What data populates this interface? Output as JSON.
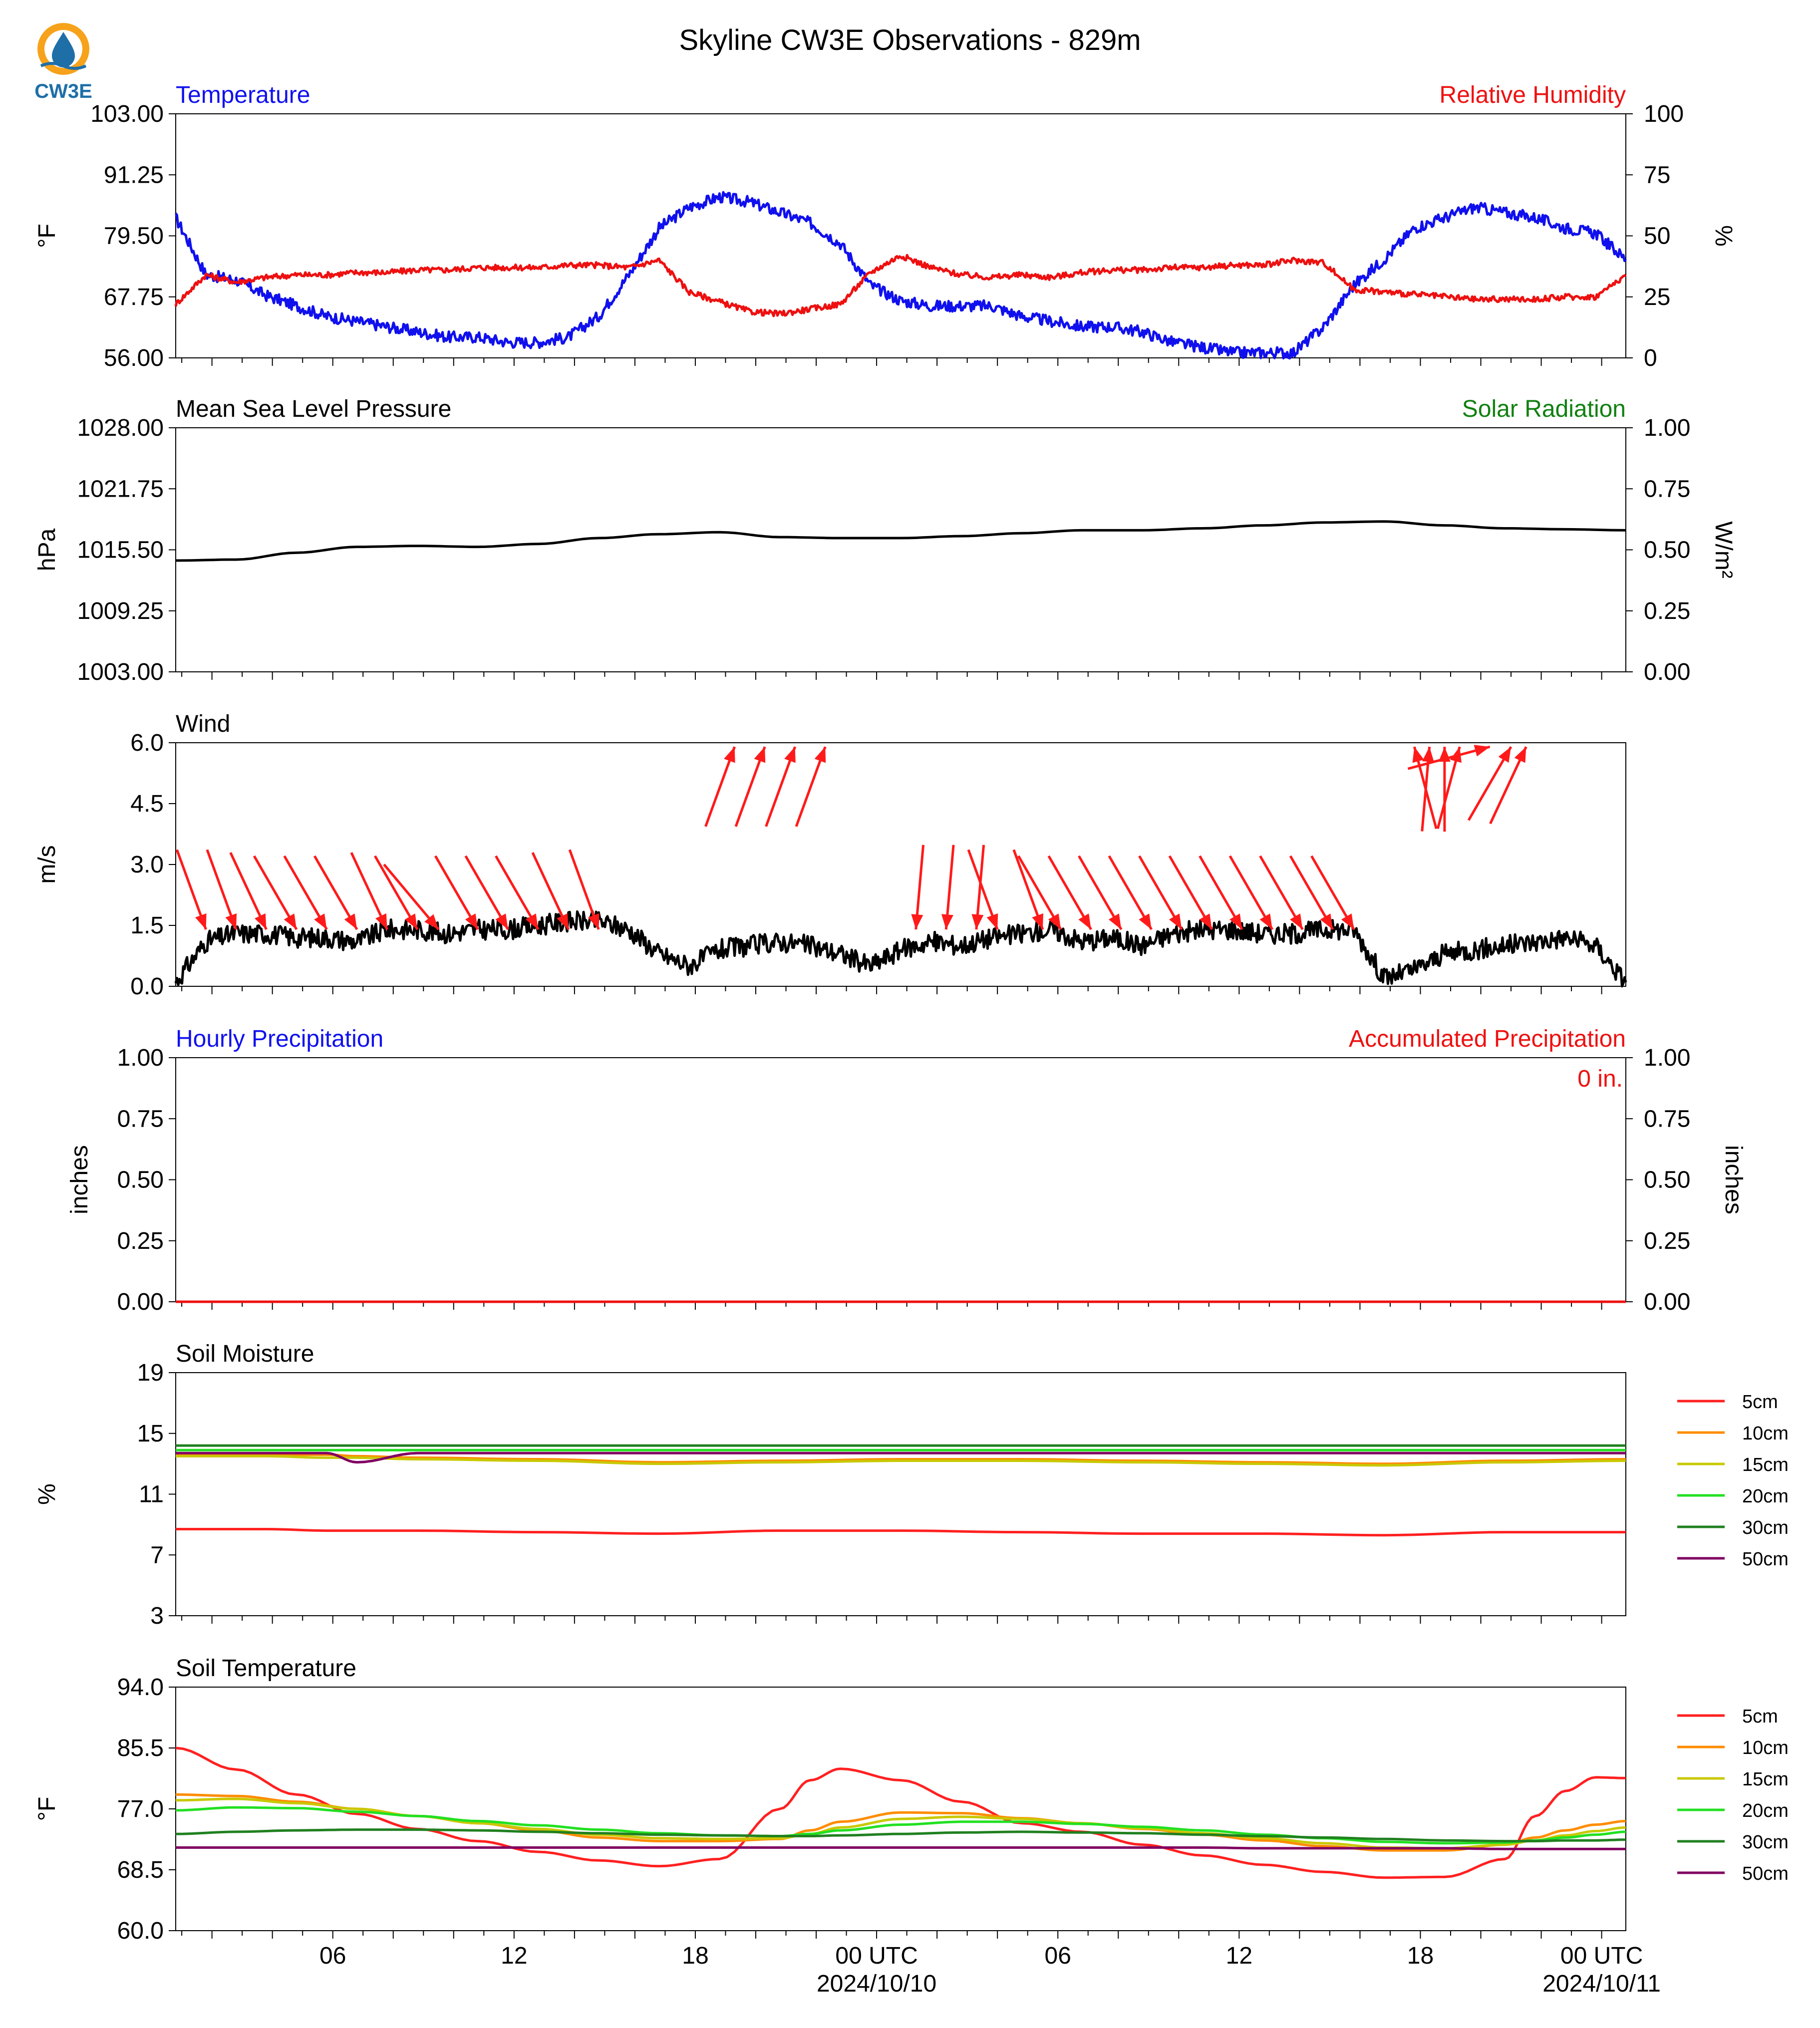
{
  "title": "Skyline CW3E Observations - 829m",
  "logo": {
    "text": "CW3E",
    "colors": {
      "ring": "#F7A21B",
      "drop": "#1E6FA8",
      "text": "#1E6FA8"
    }
  },
  "x_axis": {
    "start": "2024-10-09 01:00 UTC",
    "end": "2024-10-11 01:00 UTC",
    "tick_labels": [
      {
        "hour": 5,
        "label": "06",
        "date": ""
      },
      {
        "hour": 11,
        "label": "12",
        "date": ""
      },
      {
        "hour": 17,
        "label": "18",
        "date": ""
      },
      {
        "hour": 23,
        "label": "00 UTC",
        "date": "2024/10/10"
      },
      {
        "hour": 29,
        "label": "06",
        "date": ""
      },
      {
        "hour": 35,
        "label": "12",
        "date": ""
      },
      {
        "hour": 41,
        "label": "18",
        "date": ""
      },
      {
        "hour": 47,
        "label": "00 UTC",
        "date": "2024/10/11"
      }
    ]
  },
  "legend_labels": [
    "5cm",
    "10cm",
    "15cm",
    "20cm",
    "30cm",
    "50cm"
  ],
  "depth_colors": [
    "#ff2020",
    "#ff8c00",
    "#c8c800",
    "#22e022",
    "#208020",
    "#800060"
  ],
  "chart_data": [
    {
      "type": "line",
      "title_left": "Temperature",
      "title_right": "Relative Humidity",
      "title_left_color": "#1010ee",
      "title_right_color": "#ee1010",
      "ylabel": "°F",
      "ylabel_right": "%",
      "ylim": [
        56,
        103
      ],
      "yticks": [
        "103.00",
        "91.25",
        "79.50",
        "67.75",
        "56.00"
      ],
      "ylim_right": [
        0,
        100
      ],
      "yticks_right": [
        "100",
        "75",
        "50",
        "25",
        "0"
      ],
      "x_hours": [
        0,
        1,
        2,
        3,
        4,
        5,
        6,
        7,
        8,
        9,
        10,
        11,
        12,
        13,
        14,
        15,
        16,
        17,
        18,
        19,
        20,
        21,
        22,
        23,
        24,
        25,
        26,
        27,
        28,
        29,
        30,
        31,
        32,
        33,
        34,
        35,
        36,
        37,
        38,
        39,
        40,
        41,
        42,
        43,
        44,
        45,
        46,
        47,
        48
      ],
      "series": [
        {
          "name": "Temperature",
          "axis": "left",
          "color": "#1010ee",
          "values": [
            83,
            72,
            71,
            68,
            66,
            64,
            63,
            62,
            61,
            60,
            60,
            59,
            59,
            60,
            64,
            72,
            81,
            85,
            87,
            86,
            84,
            82,
            78,
            70,
            67,
            66,
            66,
            66,
            64,
            63,
            62,
            62,
            61,
            59,
            58,
            57,
            57,
            57,
            62,
            70,
            75,
            81,
            83,
            85,
            84,
            83,
            81,
            80,
            75
          ]
        },
        {
          "name": "Relative Humidity",
          "axis": "right",
          "color": "#ee1010",
          "values": [
            22,
            34,
            31,
            33,
            34,
            34,
            35,
            35,
            36,
            36,
            37,
            37,
            37,
            38,
            38,
            37,
            40,
            27,
            23,
            19,
            18,
            20,
            22,
            35,
            42,
            37,
            34,
            33,
            34,
            33,
            35,
            36,
            36,
            37,
            37,
            38,
            38,
            40,
            39,
            28,
            27,
            26,
            25,
            24,
            24,
            24,
            25,
            25,
            34
          ]
        }
      ]
    },
    {
      "type": "line",
      "title_left": "Mean Sea Level Pressure",
      "title_right": "Solar Radiation",
      "title_left_color": "#000000",
      "title_right_color": "#108010",
      "ylabel": "hPa",
      "ylabel_right": "W/m²",
      "ylim": [
        1003,
        1028
      ],
      "yticks": [
        "1028.00",
        "1021.75",
        "1015.50",
        "1009.25",
        "1003.00"
      ],
      "ylim_right": [
        0,
        1
      ],
      "yticks_right": [
        "1.00",
        "0.75",
        "0.50",
        "0.25",
        "0.00"
      ],
      "x_hours": [
        0,
        2,
        4,
        6,
        8,
        10,
        12,
        14,
        16,
        18,
        20,
        22,
        24,
        26,
        28,
        30,
        32,
        34,
        36,
        38,
        40,
        42,
        44,
        46,
        48
      ],
      "series": [
        {
          "name": "Mean Sea Level Pressure",
          "axis": "left",
          "color": "#000000",
          "values": [
            1014.4,
            1014.5,
            1015.2,
            1015.8,
            1015.9,
            1015.8,
            1016.1,
            1016.7,
            1017.1,
            1017.3,
            1016.8,
            1016.7,
            1016.7,
            1016.9,
            1017.2,
            1017.5,
            1017.5,
            1017.7,
            1018.0,
            1018.3,
            1018.4,
            1018.0,
            1017.7,
            1017.6,
            1017.5
          ]
        }
      ]
    },
    {
      "type": "line",
      "title_left": "Wind",
      "ylabel": "m/s",
      "ylim": [
        0,
        6
      ],
      "yticks": [
        "6.0",
        "4.5",
        "3.0",
        "1.5",
        "0.0"
      ],
      "x_hours": [
        0,
        1,
        2,
        3,
        4,
        5,
        6,
        7,
        8,
        9,
        10,
        11,
        12,
        13,
        14,
        15,
        16,
        17,
        18,
        19,
        20,
        21,
        22,
        23,
        24,
        25,
        26,
        27,
        28,
        29,
        30,
        31,
        32,
        33,
        34,
        35,
        36,
        37,
        38,
        39,
        40,
        41,
        42,
        43,
        44,
        45,
        46,
        47,
        48
      ],
      "series": [
        {
          "name": "Wind Speed",
          "color": "#000000",
          "values": [
            0.1,
            1.1,
            1.3,
            1.3,
            1.2,
            1.2,
            1.1,
            1.4,
            1.4,
            1.3,
            1.4,
            1.4,
            1.5,
            1.6,
            1.6,
            1.4,
            0.8,
            0.5,
            0.9,
            1.0,
            1.1,
            1.0,
            0.8,
            0.5,
            0.9,
            1.1,
            1.0,
            1.2,
            1.3,
            1.4,
            1.1,
            1.2,
            1.0,
            1.3,
            1.4,
            1.4,
            1.3,
            1.3,
            1.4,
            1.4,
            0.2,
            0.4,
            0.8,
            0.9,
            1.0,
            1.1,
            1.2,
            1.0,
            0.1
          ]
        }
      ],
      "arrows_color": "#ff1a1a",
      "arrows_hours": [
        1,
        2,
        3,
        4,
        5,
        6,
        7,
        8,
        8.7,
        10,
        11,
        12,
        13,
        14,
        18.5,
        19.5,
        20.5,
        21.5,
        24.5,
        25.5,
        26.5,
        27.2,
        28.7,
        29.3,
        30.3,
        31.3,
        32.3,
        33.3,
        34.3,
        35.3,
        36.3,
        37.3,
        38.3,
        39,
        41,
        41.5,
        42,
        42.5,
        43.5,
        44.2,
        44.7
      ],
      "arrows_direction_deg": [
        340,
        340,
        335,
        330,
        330,
        330,
        335,
        330,
        320,
        330,
        330,
        330,
        335,
        340,
        200,
        200,
        200,
        200,
        5,
        5,
        5,
        340,
        340,
        330,
        330,
        330,
        330,
        330,
        330,
        330,
        330,
        330,
        330,
        330,
        165,
        185,
        180,
        195,
        255,
        210,
        205
      ]
    },
    {
      "type": "line",
      "title_left": "Hourly Precipitation",
      "title_right": "Accumulated Precipitation",
      "title_left_color": "#1010ee",
      "title_right_color": "#ee1010",
      "annotation": "0 in.",
      "ylabel": "inches",
      "ylabel_right": "inches",
      "ylim": [
        0,
        1
      ],
      "yticks": [
        "1.00",
        "0.75",
        "0.50",
        "0.25",
        "0.00"
      ],
      "ylim_right": [
        0,
        1
      ],
      "yticks_right": [
        "1.00",
        "0.75",
        "0.50",
        "0.25",
        "0.00"
      ],
      "x_hours": [
        0,
        48
      ],
      "series": [
        {
          "name": "Hourly Precipitation",
          "color": "#1010ee",
          "values": [
            0,
            0
          ]
        },
        {
          "name": "Accumulated Precipitation",
          "color": "#ee1010",
          "values": [
            0,
            0
          ]
        }
      ]
    },
    {
      "type": "line",
      "title_left": "Soil Moisture",
      "ylabel": "%",
      "ylim": [
        3,
        19
      ],
      "yticks": [
        "19",
        "15",
        "11",
        "7",
        "3"
      ],
      "x_hours": [
        0,
        3,
        5,
        6,
        8,
        12,
        16,
        20,
        24,
        28,
        32,
        36,
        40,
        44,
        48
      ],
      "series": [
        {
          "name": "5cm",
          "color": "#ff2020",
          "values": [
            8.7,
            8.7,
            8.6,
            8.6,
            8.6,
            8.5,
            8.4,
            8.6,
            8.6,
            8.5,
            8.4,
            8.4,
            8.3,
            8.5,
            8.5
          ]
        },
        {
          "name": "10cm",
          "color": "#ff8c00",
          "values": [
            13.6,
            13.6,
            13.6,
            13.5,
            13.4,
            13.3,
            13.1,
            13.2,
            13.3,
            13.3,
            13.2,
            13.1,
            13.0,
            13.2,
            13.3
          ]
        },
        {
          "name": "15cm",
          "color": "#c8c800",
          "values": [
            13.5,
            13.5,
            13.4,
            13.4,
            13.3,
            13.2,
            13.0,
            13.1,
            13.2,
            13.2,
            13.1,
            13.0,
            12.9,
            13.1,
            13.2
          ]
        },
        {
          "name": "20cm",
          "color": "#22e022",
          "values": [
            13.9,
            13.9,
            13.9,
            13.9,
            13.9,
            13.9,
            13.9,
            13.9,
            13.9,
            13.9,
            13.9,
            13.9,
            13.9,
            13.9,
            13.9
          ]
        },
        {
          "name": "30cm",
          "color": "#208020",
          "values": [
            14.2,
            14.2,
            14.2,
            14.2,
            14.2,
            14.2,
            14.2,
            14.2,
            14.2,
            14.2,
            14.2,
            14.2,
            14.2,
            14.2,
            14.2
          ]
        },
        {
          "name": "50cm",
          "color": "#800060",
          "values": [
            13.7,
            13.7,
            13.7,
            13.1,
            13.7,
            13.7,
            13.7,
            13.7,
            13.7,
            13.7,
            13.7,
            13.7,
            13.7,
            13.7,
            13.7
          ]
        }
      ]
    },
    {
      "type": "line",
      "title_left": "Soil Temperature",
      "ylabel": "°F",
      "ylim": [
        60,
        94
      ],
      "yticks": [
        "94.0",
        "85.5",
        "77.0",
        "68.5",
        "60.0"
      ],
      "x_hours": [
        0,
        2,
        4,
        6,
        8,
        10,
        12,
        14,
        16,
        18,
        20,
        21,
        22,
        24,
        26,
        28,
        30,
        32,
        34,
        36,
        38,
        40,
        42,
        44,
        45,
        46,
        47,
        48
      ],
      "series": [
        {
          "name": "5cm",
          "color": "#ff2020",
          "values": [
            85.5,
            82.5,
            79.0,
            76.3,
            74.2,
            72.5,
            71.0,
            69.8,
            69.0,
            70.0,
            77.0,
            81.0,
            82.6,
            81.0,
            78.0,
            75.0,
            73.8,
            72.0,
            70.5,
            69.2,
            68.2,
            67.4,
            67.5,
            70.0,
            76.0,
            79.5,
            81.4,
            81.3
          ]
        },
        {
          "name": "10cm",
          "color": "#ff8c00",
          "values": [
            79.0,
            78.8,
            78.0,
            77.0,
            76.0,
            75.0,
            74.0,
            73.0,
            72.5,
            72.5,
            72.8,
            74.0,
            75.2,
            76.5,
            76.4,
            75.7,
            75.0,
            74.2,
            73.4,
            72.6,
            71.8,
            71.2,
            71.2,
            72.0,
            73.0,
            74.0,
            74.8,
            75.3
          ]
        },
        {
          "name": "15cm",
          "color": "#c8c800",
          "values": [
            78.2,
            78.4,
            77.8,
            77.0,
            76.0,
            75.0,
            74.2,
            73.4,
            72.9,
            72.8,
            72.9,
            73.5,
            74.4,
            75.6,
            75.9,
            75.6,
            75.0,
            74.3,
            73.6,
            72.9,
            72.2,
            71.6,
            71.5,
            72.0,
            72.6,
            73.3,
            73.9,
            74.4
          ]
        },
        {
          "name": "20cm",
          "color": "#22e022",
          "values": [
            76.8,
            77.2,
            77.1,
            76.6,
            76.0,
            75.3,
            74.7,
            74.1,
            73.6,
            73.3,
            73.2,
            73.5,
            74.0,
            74.8,
            75.2,
            75.2,
            74.9,
            74.5,
            74.0,
            73.4,
            72.9,
            72.4,
            72.2,
            72.3,
            72.6,
            73.0,
            73.4,
            73.8
          ]
        },
        {
          "name": "30cm",
          "color": "#208020",
          "values": [
            73.5,
            73.8,
            74.0,
            74.1,
            74.1,
            74.0,
            73.8,
            73.6,
            73.4,
            73.3,
            73.2,
            73.2,
            73.3,
            73.5,
            73.7,
            73.8,
            73.7,
            73.6,
            73.4,
            73.2,
            73.0,
            72.8,
            72.6,
            72.5,
            72.5,
            72.6,
            72.6,
            72.7
          ]
        },
        {
          "name": "50cm",
          "color": "#800060",
          "values": [
            71.6,
            71.6,
            71.6,
            71.6,
            71.6,
            71.6,
            71.6,
            71.6,
            71.6,
            71.6,
            71.6,
            71.6,
            71.6,
            71.6,
            71.6,
            71.6,
            71.6,
            71.6,
            71.6,
            71.5,
            71.5,
            71.5,
            71.5,
            71.4,
            71.4,
            71.4,
            71.4,
            71.4
          ]
        }
      ]
    }
  ]
}
